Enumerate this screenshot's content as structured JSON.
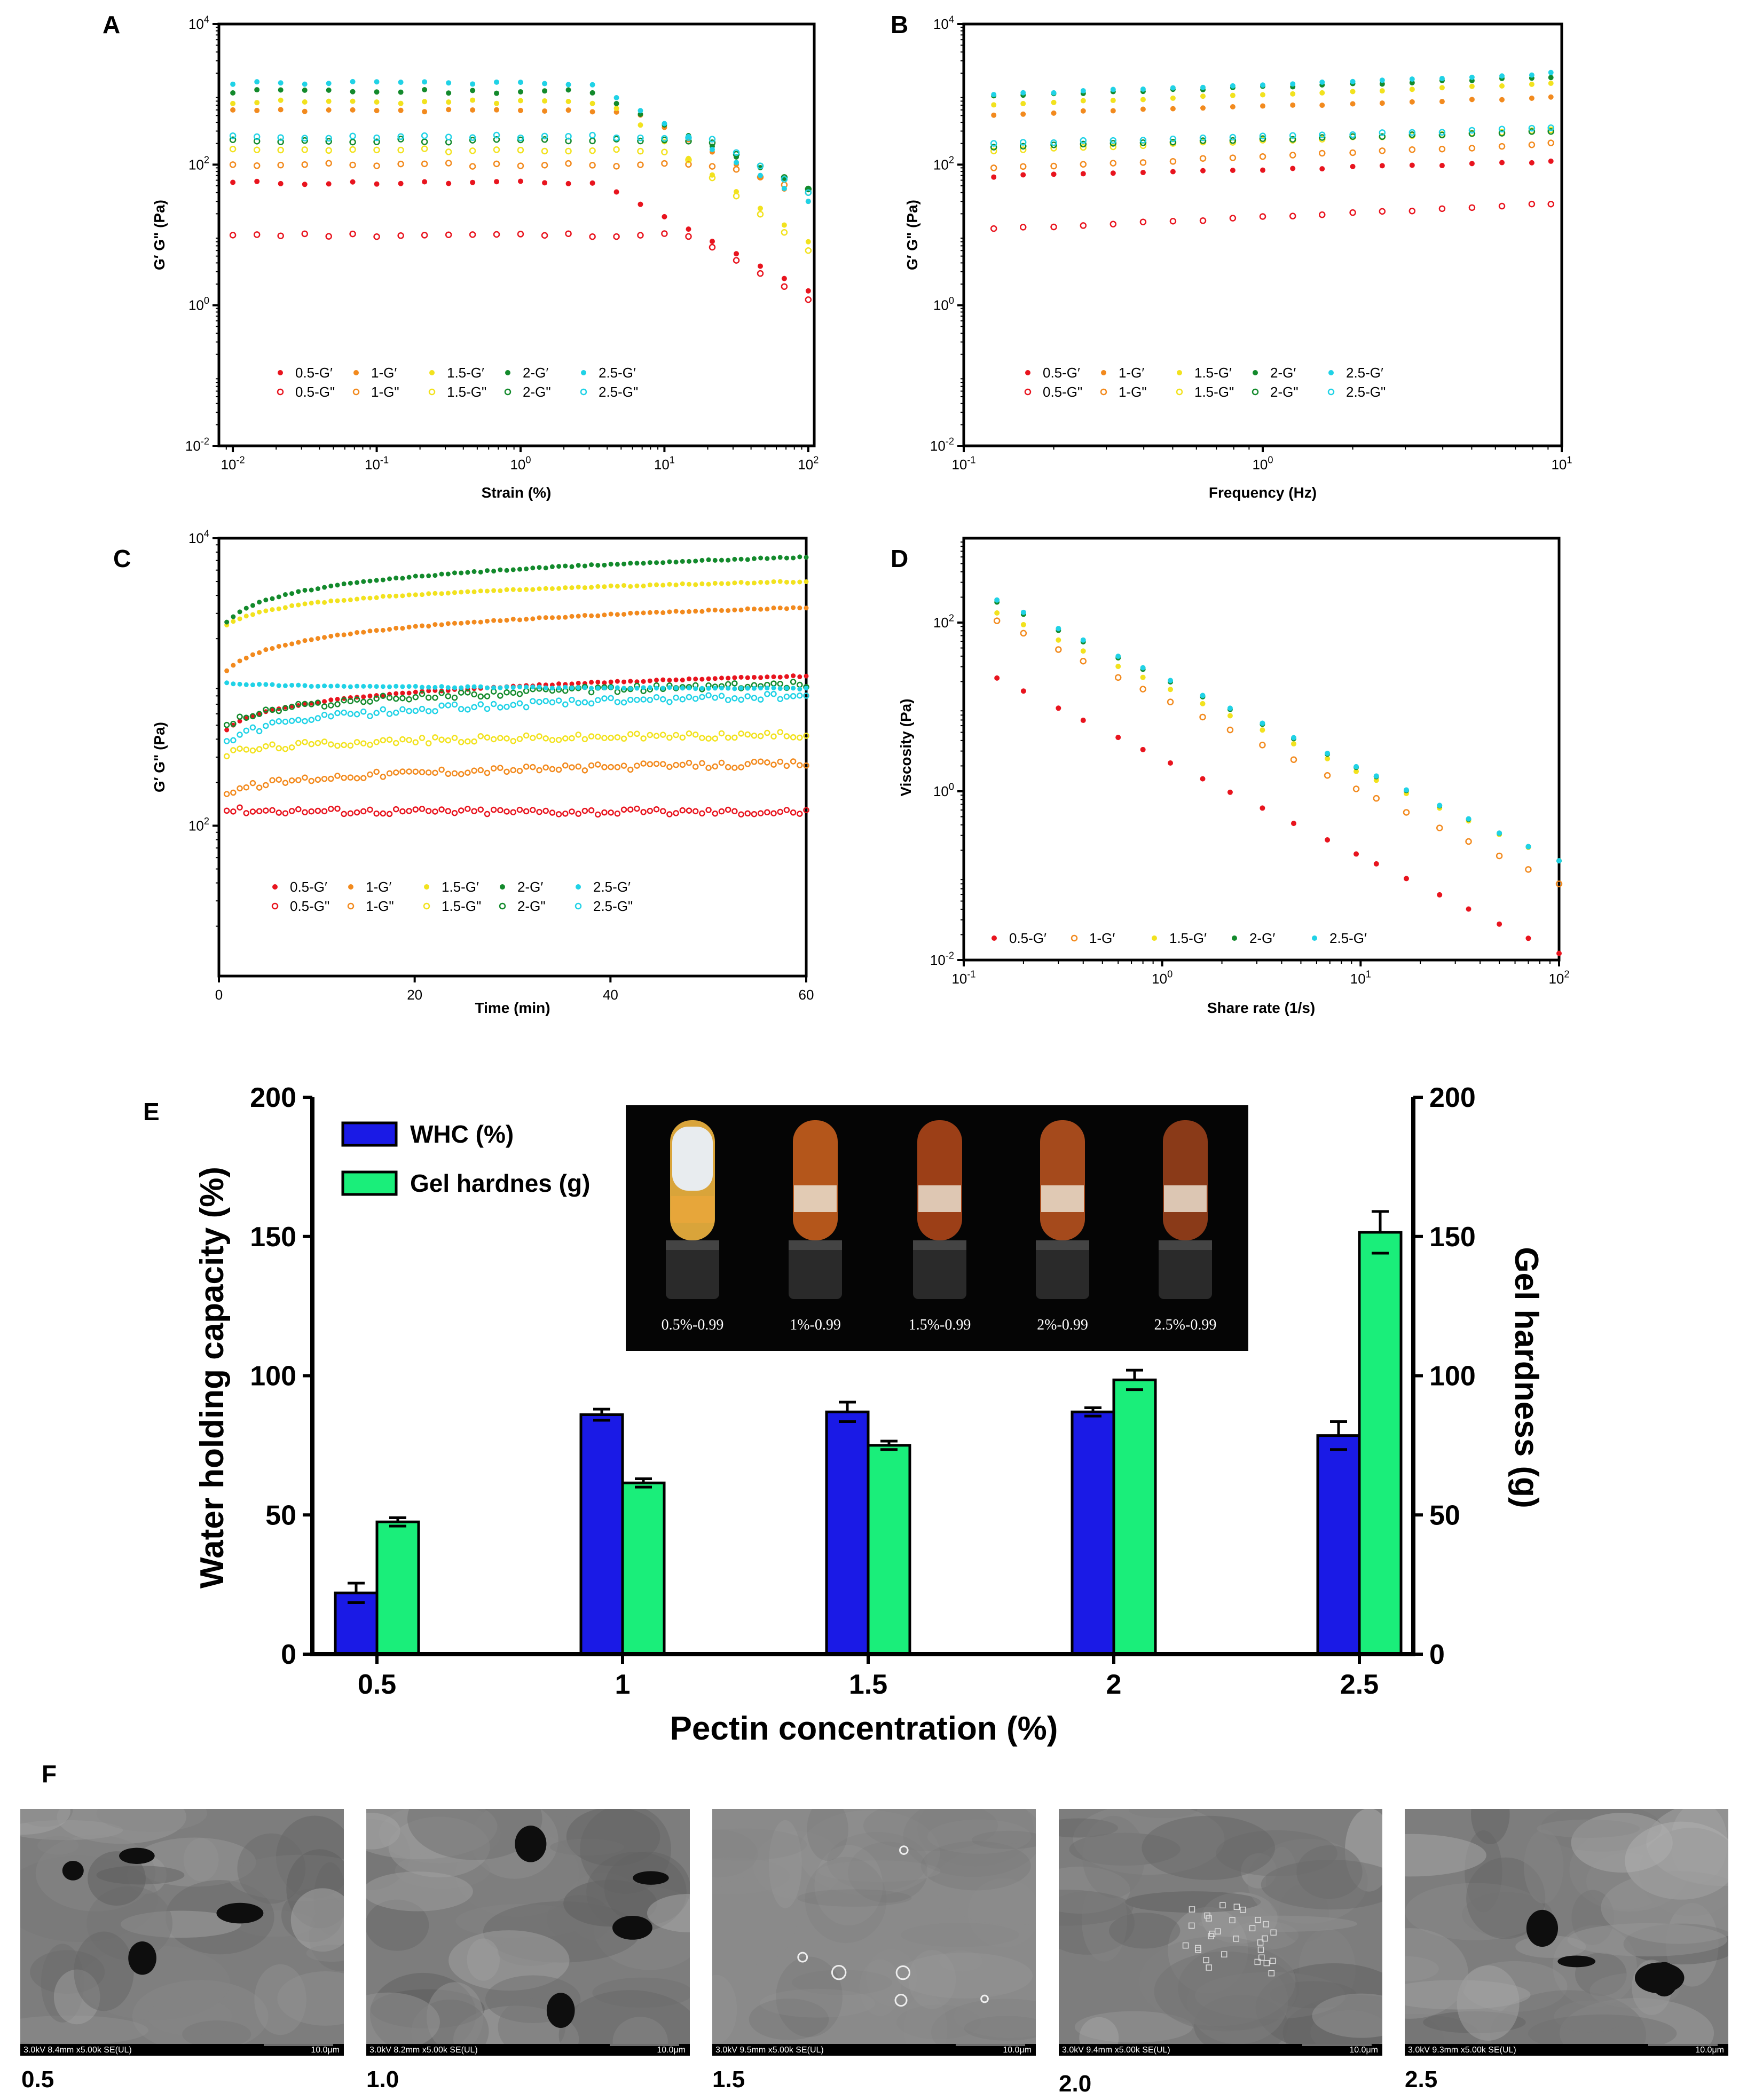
{
  "colors": {
    "c05": "#e8141e",
    "c1": "#f28a1e",
    "c15": "#f2e21e",
    "c2": "#138a2c",
    "c25": "#20d2e6",
    "whc": "#1a1ae6",
    "hard": "#1aee7a",
    "axis": "#000000"
  },
  "legend_curve": {
    "g1": [
      "0.5-G′",
      "1-G′",
      "1.5-G′",
      "2-G′",
      "2.5-G′"
    ],
    "g2": [
      "0.5-G\"",
      "1-G\"",
      "1.5-G\"",
      "2-G\"",
      "2.5-G\""
    ]
  },
  "legend_visc": [
    "0.5-G′",
    "1-G′",
    "1.5-G′",
    "2-G′",
    "2.5-G′"
  ],
  "chart_data": [
    {
      "panel": "A",
      "type": "scatter",
      "xscale": "log",
      "yscale": "log",
      "xlabel": "Strain (%)",
      "ylabel": "G′ G\" (Pa)",
      "xlim": [
        0.008,
        110
      ],
      "ylim": [
        0.01,
        10000
      ],
      "x_ticks": [
        "10-2",
        "10-1",
        "100",
        "101",
        "102"
      ],
      "y_ticks": [
        "10-2",
        "100",
        "102",
        "104"
      ],
      "x": [
        0.01,
        0.0147,
        0.0215,
        0.0316,
        0.0464,
        0.0681,
        0.1,
        0.147,
        0.215,
        0.316,
        0.464,
        0.681,
        1,
        1.47,
        2.15,
        3.16,
        4.64,
        6.81,
        10,
        14.7,
        21.5,
        31.6,
        46.4,
        68.1,
        100
      ],
      "series": [
        {
          "name": "0.5-G′",
          "fill": true,
          "color": "#e8141e",
          "plateau": 55,
          "end": 1.6,
          "breakpoint": 3.5
        },
        {
          "name": "0.5-G\"",
          "fill": false,
          "color": "#e8141e",
          "plateau": 10,
          "end": 1.2,
          "breakpoint": 15
        },
        {
          "name": "1-G′",
          "fill": true,
          "color": "#f28a1e",
          "plateau": 580,
          "end": 30,
          "breakpoint": 6
        },
        {
          "name": "1-G\"",
          "fill": false,
          "color": "#f28a1e",
          "plateau": 100,
          "end": 40,
          "breakpoint": 25
        },
        {
          "name": "1.5-G′",
          "fill": true,
          "color": "#f2e21e",
          "plateau": 780,
          "end": 8,
          "breakpoint": 4
        },
        {
          "name": "1.5-G\"",
          "fill": false,
          "color": "#f2e21e",
          "plateau": 160,
          "end": 6,
          "breakpoint": 12
        },
        {
          "name": "2-G′",
          "fill": true,
          "color": "#138a2c",
          "plateau": 1100,
          "end": 45,
          "breakpoint": 3
        },
        {
          "name": "2-G\"",
          "fill": false,
          "color": "#138a2c",
          "plateau": 220,
          "end": 45,
          "breakpoint": 20
        },
        {
          "name": "2.5-G′",
          "fill": true,
          "color": "#20d2e6",
          "plateau": 1450,
          "end": 30,
          "breakpoint": 3
        },
        {
          "name": "2.5-G\"",
          "fill": false,
          "color": "#20d2e6",
          "plateau": 250,
          "end": 40,
          "breakpoint": 20
        }
      ]
    },
    {
      "panel": "B",
      "type": "scatter",
      "xscale": "log",
      "yscale": "log",
      "xlabel": "Frequency (Hz)",
      "ylabel": "G′ G\" (Pa)",
      "xlim": [
        0.1,
        10
      ],
      "ylim": [
        0.01,
        10000
      ],
      "x_ticks": [
        "10-1",
        "100",
        "101"
      ],
      "y_ticks": [
        "10-2",
        "100",
        "102",
        "104"
      ],
      "x": [
        0.126,
        0.158,
        0.2,
        0.251,
        0.316,
        0.398,
        0.501,
        0.631,
        0.794,
        1.0,
        1.26,
        1.58,
        2.0,
        2.51,
        3.16,
        3.98,
        5.01,
        6.31,
        7.94,
        9.2
      ],
      "series": [
        {
          "name": "0.5-G′",
          "fill": true,
          "color": "#e8141e",
          "start": 68,
          "end": 110
        },
        {
          "name": "0.5-G\"",
          "fill": false,
          "color": "#e8141e",
          "start": 12,
          "end": 28
        },
        {
          "name": "1-G′",
          "fill": true,
          "color": "#f28a1e",
          "start": 520,
          "end": 900
        },
        {
          "name": "1-G\"",
          "fill": false,
          "color": "#f28a1e",
          "start": 88,
          "end": 200
        },
        {
          "name": "1.5-G′",
          "fill": true,
          "color": "#f2e21e",
          "start": 720,
          "end": 1400
        },
        {
          "name": "1.5-G\"",
          "fill": false,
          "color": "#f2e21e",
          "start": 160,
          "end": 310
        },
        {
          "name": "2-G′",
          "fill": true,
          "color": "#138a2c",
          "start": 950,
          "end": 1750
        },
        {
          "name": "2-G\"",
          "fill": false,
          "color": "#138a2c",
          "start": 180,
          "end": 300
        },
        {
          "name": "2.5-G′",
          "fill": true,
          "color": "#20d2e6",
          "start": 1000,
          "end": 2000
        },
        {
          "name": "2.5-G\"",
          "fill": false,
          "color": "#20d2e6",
          "start": 200,
          "end": 330
        }
      ]
    },
    {
      "panel": "C",
      "type": "scatter",
      "xscale": "linear",
      "yscale": "log",
      "xlabel": "Time (min)",
      "ylabel": "G′ G\" (Pa)",
      "xlim": [
        0,
        60
      ],
      "ylim": [
        9,
        10000
      ],
      "x_ticks": [
        "0",
        "20",
        "40",
        "60"
      ],
      "y_ticks": [
        "102",
        "104"
      ],
      "series": [
        {
          "name": "0.5-G′",
          "fill": true,
          "color": "#e8141e",
          "start": 400,
          "end": 1100
        },
        {
          "name": "0.5-G\"",
          "fill": false,
          "color": "#e8141e",
          "start": 130,
          "end": 125
        },
        {
          "name": "1-G′",
          "fill": true,
          "color": "#f28a1e",
          "start": 1000,
          "end": 3300
        },
        {
          "name": "1-G\"",
          "fill": false,
          "color": "#f28a1e",
          "start": 155,
          "end": 270
        },
        {
          "name": "1.5-G′",
          "fill": true,
          "color": "#f2e21e",
          "start": 2200,
          "end": 5000
        },
        {
          "name": "1.5-G\"",
          "fill": false,
          "color": "#f2e21e",
          "start": 300,
          "end": 430
        },
        {
          "name": "2-G′",
          "fill": true,
          "color": "#138a2c",
          "start": 2200,
          "end": 7400
        },
        {
          "name": "2-G\"",
          "fill": false,
          "color": "#138a2c",
          "start": 450,
          "end": 960
        },
        {
          "name": "2.5-G′",
          "fill": true,
          "color": "#20d2e6",
          "start": 1000,
          "end": 900
        },
        {
          "name": "2.5-G\"",
          "fill": false,
          "color": "#20d2e6",
          "start": 340,
          "end": 800
        }
      ]
    },
    {
      "panel": "D",
      "type": "scatter",
      "xscale": "log",
      "yscale": "log",
      "xlabel": "Share rate (1/s)",
      "ylabel": "Viscosity (Pa)",
      "xlim": [
        0.1,
        100
      ],
      "ylim": [
        0.01,
        1000
      ],
      "x_ticks": [
        "10-1",
        "100",
        "101",
        "102"
      ],
      "y_ticks": [
        "10-2",
        "100",
        "102"
      ],
      "x": [
        0.147,
        0.2,
        0.3,
        0.4,
        0.6,
        0.8,
        1.1,
        1.6,
        2.2,
        3.2,
        4.6,
        6.8,
        9.5,
        12,
        17,
        25,
        35,
        50,
        70,
        100
      ],
      "series": [
        {
          "name": "0.5-G′",
          "fill": true,
          "color": "#e8141e",
          "start": 22,
          "end": 0.012
        },
        {
          "name": "1-G′",
          "fill": false,
          "color": "#f28a1e",
          "start": 105,
          "end": 0.08
        },
        {
          "name": "1.5-G′",
          "fill": true,
          "color": "#f2e21e",
          "start": 130,
          "end": 0.15
        },
        {
          "name": "2-G′",
          "fill": true,
          "color": "#138a2c",
          "start": 175,
          "end": 0.15
        },
        {
          "name": "2.5-G′",
          "fill": true,
          "color": "#20d2e6",
          "start": 185,
          "end": 0.15
        }
      ]
    },
    {
      "panel": "E",
      "type": "bar",
      "categories": [
        "0.5",
        "1",
        "1.5",
        "2",
        "2.5"
      ],
      "xlabel": "Pectin concentration (%)",
      "ylabel": "Water holding capacity (%)",
      "y2label": "Gel hardness (g)",
      "ylim": [
        0,
        200
      ],
      "y_ticks": [
        "0",
        "50",
        "100",
        "150",
        "200"
      ],
      "series": [
        {
          "name": "WHC (%)",
          "values": [
            22,
            86,
            87,
            87,
            78.5
          ],
          "errors": [
            3.5,
            2,
            3.5,
            1.5,
            5
          ],
          "color": "#1a1ae6"
        },
        {
          "name": "Gel hardnes (g)",
          "values": [
            47.5,
            61.5,
            75,
            98.5,
            151.5
          ],
          "errors": [
            1.5,
            1.5,
            1.5,
            3.5,
            7.5
          ],
          "color": "#1aee7a"
        }
      ]
    }
  ],
  "panel_letters": [
    "A",
    "B",
    "C",
    "D",
    "E",
    "F"
  ],
  "tubes": [
    "0.5%-0.99",
    "1%-0.99",
    "1.5%-0.99",
    "2%-0.99",
    "2.5%-0.99"
  ],
  "sem": [
    {
      "label": "0.5",
      "bar": "3.0kV 8.4mm x5.00k SE(UL)",
      "scale": "10.0μm"
    },
    {
      "label": "1.0",
      "bar": "3.0kV 8.2mm x5.00k SE(UL)",
      "scale": "10.0μm"
    },
    {
      "label": "1.5",
      "bar": "3.0kV 9.5mm x5.00k SE(UL)",
      "scale": "10.0μm"
    },
    {
      "label": "2.0",
      "bar": "3.0kV 9.4mm x5.00k SE(UL)",
      "scale": "10.0μm"
    },
    {
      "label": "2.5",
      "bar": "3.0kV 9.3mm x5.00k SE(UL)",
      "scale": "10.0μm"
    }
  ]
}
